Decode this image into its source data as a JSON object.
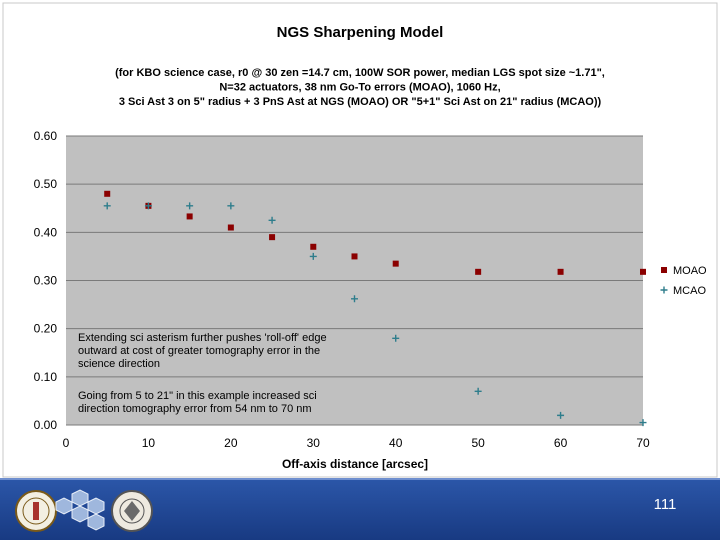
{
  "slide": {
    "page_number": "111"
  },
  "chart_data": {
    "type": "scatter",
    "title": "NGS Sharpening Model",
    "subtitle": [
      "(for KBO science case, r0 @ 30 zen =14.7 cm, 100W SOR power, median LGS spot size ~1.71\",",
      "N=32 actuators, 38 nm Go-To errors (MOAO), 1060 Hz,",
      "3 Sci Ast 3 on 5\" radius + 3 PnS Ast at NGS (MOAO) OR \"5+1\" Sci Ast on 21\" radius (MCAO))"
    ],
    "xlabel": "Off-axis distance [arcsec]",
    "ylabel": "",
    "xlim": [
      0,
      70
    ],
    "ylim": [
      0,
      0.6
    ],
    "x_ticks": [
      "0",
      "10",
      "20",
      "30",
      "40",
      "50",
      "60",
      "70"
    ],
    "x_tick_values": [
      0,
      10,
      20,
      30,
      40,
      50,
      60,
      70
    ],
    "y_ticks": [
      "0.00",
      "0.10",
      "0.20",
      "0.30",
      "0.40",
      "0.50",
      "0.60"
    ],
    "y_tick_values": [
      0,
      0.1,
      0.2,
      0.3,
      0.4,
      0.5,
      0.6
    ],
    "grid": true,
    "legend_position": "right",
    "series": [
      {
        "name": "MOAO",
        "marker": "square",
        "color": "#8b0000",
        "x": [
          5,
          10,
          15,
          20,
          25,
          30,
          35,
          40,
          50,
          60,
          70
        ],
        "y": [
          0.48,
          0.455,
          0.433,
          0.41,
          0.39,
          0.37,
          0.35,
          0.335,
          0.318,
          0.318,
          0.318
        ]
      },
      {
        "name": "MCAO",
        "marker": "plus",
        "color": "#2e7d8c",
        "x": [
          5,
          10,
          15,
          20,
          25,
          30,
          35,
          40,
          50,
          60,
          70
        ],
        "y": [
          0.455,
          0.455,
          0.455,
          0.455,
          0.425,
          0.35,
          0.262,
          0.18,
          0.07,
          0.02,
          0.005
        ]
      }
    ],
    "annotations": [
      {
        "lines": [
          "Extending sci asterism further pushes 'roll-off' edge",
          "outward at cost of greater tomography error in the",
          "science direction"
        ]
      },
      {
        "lines": [
          "Going from 5 to 21\" in this example increased sci",
          "direction tomography error from 54 nm to 70 nm"
        ]
      }
    ]
  }
}
